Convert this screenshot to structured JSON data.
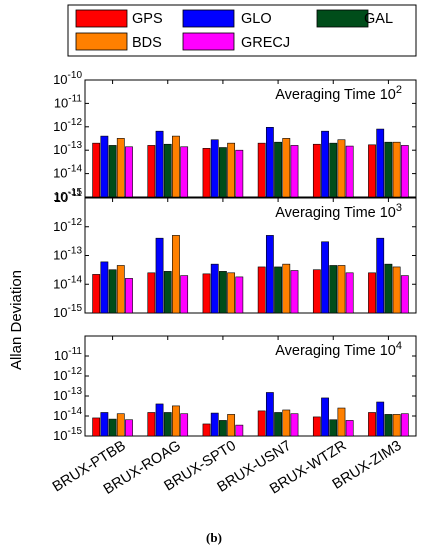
{
  "chart_data": {
    "type": "bar",
    "y_scale": "log",
    "ylabel": "Allan Deviation",
    "caption": "(b)",
    "categories": [
      "BRUX-PTBB",
      "BRUX-ROAG",
      "BRUX-SPT0",
      "BRUX-USN7",
      "BRUX-WTZR",
      "BRUX-ZIM3"
    ],
    "legend": {
      "placement": "top",
      "entries": [
        {
          "label": "GPS",
          "color": "#ff0000"
        },
        {
          "label": "GLO",
          "color": "#0000ff"
        },
        {
          "label": "GAL",
          "color": "#004d1a"
        },
        {
          "label": "BDS",
          "color": "#ff8000"
        },
        {
          "label": "GRECJ",
          "color": "#ff00ff"
        }
      ]
    },
    "series_colors": [
      "#ff0000",
      "#0000ff",
      "#004d1a",
      "#ff8000",
      "#ff00ff"
    ],
    "panels": [
      {
        "title_base": "Averaging Time 10",
        "title_exp": "2",
        "ylim_exp": [
          -15,
          -10
        ],
        "yticks": [
          {
            "base": "10",
            "exp": "-10"
          },
          {
            "base": "10",
            "exp": "-11"
          },
          {
            "base": "10",
            "exp": "-12"
          },
          {
            "base": "10",
            "exp": "-13"
          },
          {
            "base": "10",
            "exp": "-14"
          },
          {
            "base": "10",
            "exp": "-15"
          }
        ],
        "series": [
          {
            "name": "GPS",
            "values": [
              2e-13,
              1.6e-13,
              1.2e-13,
              2e-13,
              1.8e-13,
              1.7e-13
            ]
          },
          {
            "name": "GLO",
            "values": [
              4e-13,
              6.5e-13,
              2.8e-13,
              9.5e-13,
              6.5e-13,
              8e-13
            ]
          },
          {
            "name": "GAL",
            "values": [
              1.6e-13,
              1.8e-13,
              1.3e-13,
              2.2e-13,
              2e-13,
              2.2e-13
            ]
          },
          {
            "name": "BDS",
            "values": [
              3.2e-13,
              4e-13,
              2e-13,
              3.2e-13,
              2.8e-13,
              2.2e-13
            ]
          },
          {
            "name": "GRECJ",
            "values": [
              1.4e-13,
              1.4e-13,
              1e-13,
              1.6e-13,
              1.5e-13,
              1.6e-13
            ]
          }
        ]
      },
      {
        "title_base": "Averaging Time 10",
        "title_exp": "3",
        "ylim_exp": [
          -15,
          -11
        ],
        "yticks": [
          {
            "base": "10",
            "exp": "-11"
          },
          {
            "base": "10",
            "exp": "-12"
          },
          {
            "base": "10",
            "exp": "-13"
          },
          {
            "base": "10",
            "exp": "-14"
          },
          {
            "base": "10",
            "exp": "-15"
          }
        ],
        "series": [
          {
            "name": "GPS",
            "values": [
              2.2e-14,
              2.5e-14,
              2.3e-14,
              4e-14,
              3.2e-14,
              2.5e-14
            ]
          },
          {
            "name": "GLO",
            "values": [
              6e-14,
              4e-13,
              5e-14,
              5e-13,
              3e-13,
              4e-13
            ]
          },
          {
            "name": "GAL",
            "values": [
              3.2e-14,
              2.8e-14,
              2.8e-14,
              4e-14,
              4.5e-14,
              5e-14
            ]
          },
          {
            "name": "BDS",
            "values": [
              4.5e-14,
              5e-13,
              2.5e-14,
              5e-14,
              4.5e-14,
              4e-14
            ]
          },
          {
            "name": "GRECJ",
            "values": [
              1.6e-14,
              2e-14,
              1.8e-14,
              3e-14,
              2.5e-14,
              2e-14
            ]
          }
        ]
      },
      {
        "title_base": "Averaging Time 10",
        "title_exp": "4",
        "ylim_exp": [
          -15,
          -10
        ],
        "yticks": [
          {
            "base": "10",
            "exp": "-11"
          },
          {
            "base": "10",
            "exp": "-12"
          },
          {
            "base": "10",
            "exp": "-13"
          },
          {
            "base": "10",
            "exp": "-14"
          },
          {
            "base": "10",
            "exp": "-15"
          }
        ],
        "series": [
          {
            "name": "GPS",
            "values": [
              8e-15,
              1.5e-14,
              4e-15,
              1.8e-14,
              9e-15,
              1.5e-14
            ]
          },
          {
            "name": "GLO",
            "values": [
              1.5e-14,
              4e-14,
              1.4e-14,
              1.5e-13,
              8e-14,
              5e-14
            ]
          },
          {
            "name": "GAL",
            "values": [
              7e-15,
              1.5e-14,
              6e-15,
              1.5e-14,
              6.5e-15,
              1.2e-14
            ]
          },
          {
            "name": "BDS",
            "values": [
              1.3e-14,
              3.2e-14,
              1.2e-14,
              2e-14,
              2.5e-14,
              1.2e-14
            ]
          },
          {
            "name": "GRECJ",
            "values": [
              6.5e-15,
              1.3e-14,
              3.5e-15,
              1.3e-14,
              6e-15,
              1.3e-14
            ]
          }
        ]
      }
    ]
  }
}
